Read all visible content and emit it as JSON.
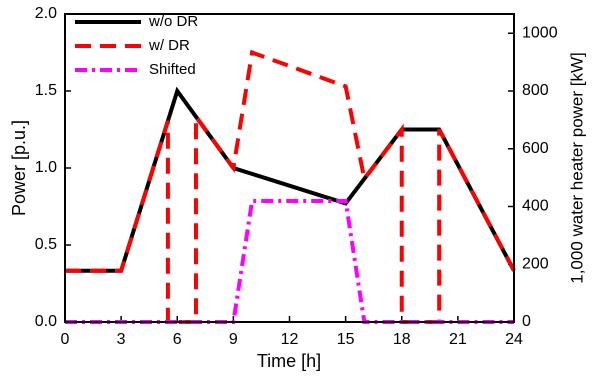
{
  "chart_data": {
    "type": "line",
    "xlabel": "Time [h]",
    "ylabel": "Power [p.u.]",
    "y2label": "1,000 water heater power [kW]",
    "xlim": [
      0,
      24
    ],
    "xticks": [
      0,
      3,
      6,
      9,
      12,
      15,
      18,
      21,
      24
    ],
    "ylim": [
      0,
      2
    ],
    "yticks": [
      {
        "value": 0,
        "label": "0.0"
      },
      {
        "value": 0.5,
        "label": "0.5"
      },
      {
        "value": 1,
        "label": "1.0"
      },
      {
        "value": 1.5,
        "label": "1.5"
      },
      {
        "value": 2,
        "label": "2.0"
      }
    ],
    "y2lim": [
      0,
      1066.67
    ],
    "y2ticks": [
      0,
      200,
      400,
      600,
      800,
      1000
    ],
    "legend": "upper left",
    "series": [
      {
        "name": "w/o DR",
        "color": "#000000",
        "dash": "solid",
        "x": [
          0,
          3,
          6,
          9,
          15,
          18,
          20,
          24
        ],
        "values": [
          0.333,
          0.333,
          1.5,
          1.0,
          0.77,
          1.25,
          1.25,
          0.333
        ]
      },
      {
        "name": "w/ DR",
        "color": "#ff0000",
        "dash": "dashed",
        "x": [
          0,
          3,
          5.5,
          5.5,
          7,
          7,
          9,
          10,
          15,
          16,
          18,
          18,
          20,
          20,
          24
        ],
        "values": [
          0.333,
          0.333,
          1.306,
          0,
          0,
          1.333,
          1.0,
          1.75,
          1.53,
          0.93,
          1.25,
          0,
          0,
          1.25,
          0.333
        ]
      },
      {
        "name": "Shifted",
        "color": "#ff00ff",
        "dash": "dashdot",
        "x": [
          0,
          9,
          10,
          15,
          16,
          24
        ],
        "values": [
          0,
          0,
          0.786,
          0.786,
          0,
          0
        ]
      }
    ]
  }
}
